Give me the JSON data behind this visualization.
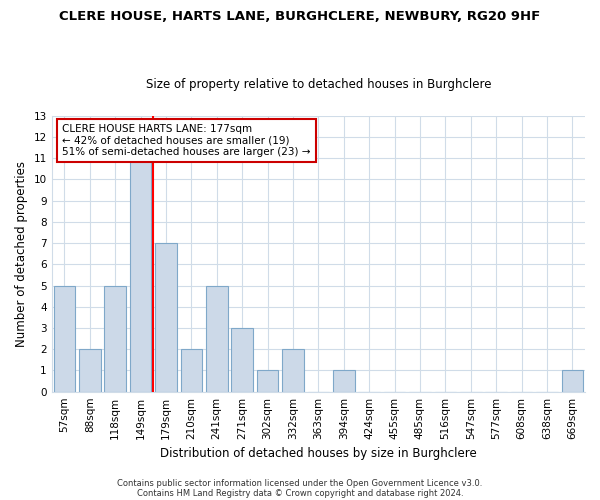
{
  "title1": "CLERE HOUSE, HARTS LANE, BURGHCLERE, NEWBURY, RG20 9HF",
  "title2": "Size of property relative to detached houses in Burghclere",
  "xlabel": "Distribution of detached houses by size in Burghclere",
  "ylabel": "Number of detached properties",
  "bar_labels": [
    "57sqm",
    "88sqm",
    "118sqm",
    "149sqm",
    "179sqm",
    "210sqm",
    "241sqm",
    "271sqm",
    "302sqm",
    "332sqm",
    "363sqm",
    "394sqm",
    "424sqm",
    "455sqm",
    "485sqm",
    "516sqm",
    "547sqm",
    "577sqm",
    "608sqm",
    "638sqm",
    "669sqm"
  ],
  "bar_values": [
    5,
    2,
    5,
    11,
    7,
    2,
    5,
    3,
    1,
    2,
    0,
    1,
    0,
    0,
    0,
    0,
    0,
    0,
    0,
    0,
    1
  ],
  "bar_fill_color": "#ccd9e8",
  "bar_edge_color": "#7fa8c9",
  "vline_x_index": 3.5,
  "vline_color": "red",
  "ylim": [
    0,
    13
  ],
  "yticks": [
    0,
    1,
    2,
    3,
    4,
    5,
    6,
    7,
    8,
    9,
    10,
    11,
    12,
    13
  ],
  "annotation_title": "CLERE HOUSE HARTS LANE: 177sqm",
  "annotation_line1": "← 42% of detached houses are smaller (19)",
  "annotation_line2": "51% of semi-detached houses are larger (23) →",
  "annotation_box_facecolor": "white",
  "annotation_box_edgecolor": "#cc0000",
  "footer1": "Contains HM Land Registry data © Crown copyright and database right 2024.",
  "footer2": "Contains public sector information licensed under the Open Government Licence v3.0.",
  "background_color": "#ffffff",
  "grid_color": "#d0dce8",
  "title1_fontsize": 9.5,
  "title2_fontsize": 8.5,
  "axis_label_fontsize": 8.5,
  "tick_fontsize": 7.5,
  "annot_fontsize": 7.5,
  "footer_fontsize": 6.0
}
